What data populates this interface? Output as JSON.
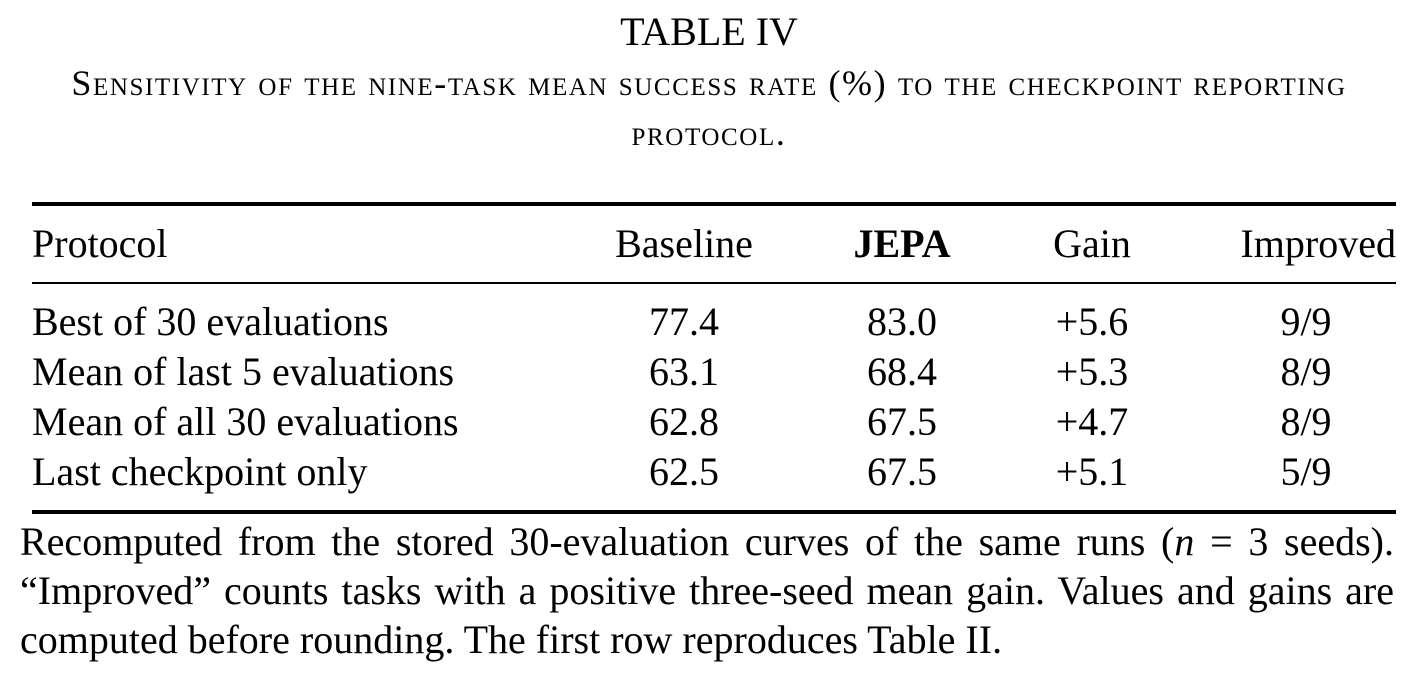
{
  "caption": {
    "table_number": "TABLE IV",
    "title": "Sensitivity of the nine-task mean success rate (%) to the checkpoint reporting protocol."
  },
  "table": {
    "headers": {
      "protocol": "Protocol",
      "baseline": "Baseline",
      "jepa": "JEPA",
      "gain": "Gain",
      "improved": "Improved"
    },
    "rows": [
      {
        "protocol": "Best of 30 evaluations",
        "baseline": "77.4",
        "jepa": "83.0",
        "gain": "+5.6",
        "improved": "9/9"
      },
      {
        "protocol": "Mean of last 5 evaluations",
        "baseline": "63.1",
        "jepa": "68.4",
        "gain": "+5.3",
        "improved": "8/9"
      },
      {
        "protocol": "Mean of all 30 evaluations",
        "baseline": "62.8",
        "jepa": "67.5",
        "gain": "+4.7",
        "improved": "8/9"
      },
      {
        "protocol": "Last checkpoint only",
        "baseline": "62.5",
        "jepa": "67.5",
        "gain": "+5.1",
        "improved": "5/9"
      }
    ]
  },
  "note": {
    "part1": "Recomputed from the stored 30-evaluation curves of the same runs (",
    "var": "n",
    "part2": " = 3 seeds). “Improved” counts tasks with a positive three-seed mean gain. Values and gains are computed before rounding. The first row reproduces Table II."
  }
}
